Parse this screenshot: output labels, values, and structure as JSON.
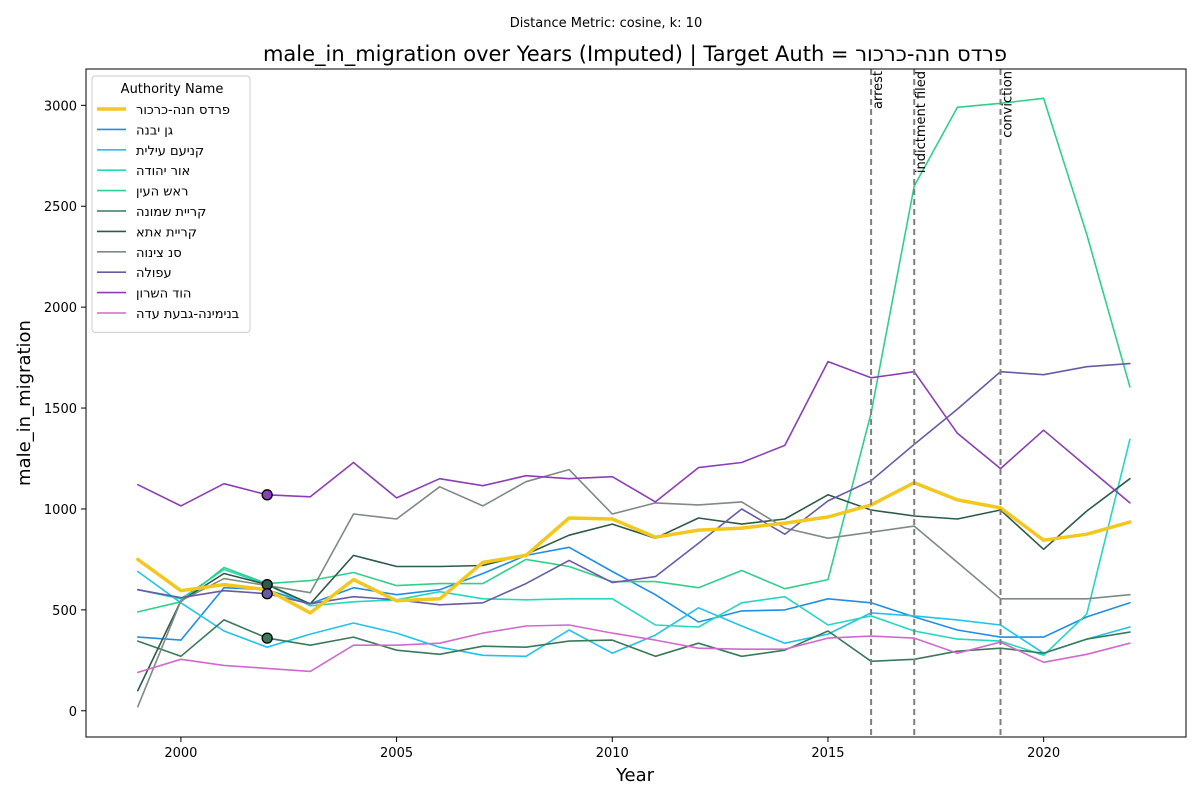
{
  "chart_data": {
    "type": "line",
    "suptitle": "Distance Metric: cosine, k: 10",
    "title": "male_in_migration over Years (Imputed) | Target Auth = פרדס חנה-כרכור",
    "xlabel": "Year",
    "ylabel": "male_in_migration",
    "xlim": [
      1997.8,
      2023.3
    ],
    "ylim": [
      -130,
      3180
    ],
    "xticks": [
      2000,
      2005,
      2010,
      2015,
      2020
    ],
    "yticks": [
      0,
      500,
      1000,
      1500,
      2000,
      2500,
      3000
    ],
    "grid": false,
    "legend": {
      "title": "Authority Name",
      "placement": "top-left"
    },
    "x": [
      1999,
      2000,
      2001,
      2002,
      2003,
      2004,
      2005,
      2006,
      2007,
      2008,
      2009,
      2010,
      2011,
      2012,
      2013,
      2014,
      2015,
      2016,
      2017,
      2018,
      2019,
      2020,
      2021,
      2022
    ],
    "series": [
      {
        "name": "פרדס חנה-כרכור",
        "color": "#f2c81e",
        "width": 3.5,
        "target": true,
        "values": [
          750,
          595,
          625,
          600,
          485,
          650,
          545,
          555,
          735,
          770,
          955,
          950,
          860,
          895,
          905,
          930,
          960,
          1020,
          1130,
          1045,
          1005,
          845,
          875,
          935
        ]
      },
      {
        "name": "גן יבנה",
        "color": "#1f8fe6",
        "width": 1.6,
        "values": [
          365,
          350,
          610,
          600,
          530,
          610,
          575,
          600,
          680,
          770,
          810,
          690,
          575,
          440,
          495,
          500,
          555,
          535,
          465,
          400,
          365,
          365,
          465,
          535
        ]
      },
      {
        "name": "קניעם עילית",
        "color": "#20c4ea",
        "width": 1.6,
        "values": [
          690,
          535,
          395,
          315,
          380,
          435,
          385,
          315,
          275,
          270,
          400,
          285,
          375,
          510,
          420,
          335,
          380,
          485,
          470,
          450,
          425,
          285,
          355,
          415
        ]
      },
      {
        "name": "אור יהודה",
        "color": "#24d8be",
        "width": 1.6,
        "values": [
          600,
          555,
          700,
          625,
          520,
          540,
          550,
          590,
          555,
          550,
          555,
          555,
          425,
          415,
          535,
          565,
          425,
          470,
          395,
          355,
          345,
          275,
          480,
          1345
        ]
      },
      {
        "name": "ראש העין",
        "color": "#2fd08a",
        "width": 1.6,
        "values": [
          490,
          540,
          710,
          630,
          645,
          685,
          620,
          630,
          630,
          750,
          715,
          640,
          640,
          610,
          695,
          605,
          650,
          1475,
          2600,
          2990,
          3010,
          3035,
          2360,
          1605
        ]
      },
      {
        "name": "קריית שמונה",
        "color": "#3a7a5a",
        "width": 1.6,
        "values": [
          345,
          270,
          450,
          360,
          325,
          365,
          300,
          280,
          320,
          315,
          345,
          350,
          270,
          335,
          270,
          300,
          395,
          245,
          255,
          295,
          310,
          285,
          355,
          390
        ]
      },
      {
        "name": "קריית אתא",
        "color": "#2e5a48",
        "width": 1.6,
        "values": [
          100,
          545,
          680,
          625,
          530,
          770,
          715,
          715,
          720,
          775,
          870,
          925,
          855,
          955,
          925,
          950,
          1070,
          995,
          965,
          950,
          995,
          800,
          990,
          1150
        ]
      },
      {
        "name": "סנ צינוה",
        "color": "#808a84",
        "width": 1.6,
        "values": [
          20,
          545,
          655,
          620,
          585,
          975,
          950,
          1110,
          1015,
          1135,
          1195,
          975,
          1030,
          1020,
          1035,
          905,
          855,
          885,
          915,
          735,
          555,
          555,
          555,
          575
        ]
      },
      {
        "name": "עפולה",
        "color": "#6a5aa6",
        "width": 1.6,
        "values": [
          600,
          560,
          595,
          580,
          530,
          565,
          550,
          525,
          535,
          630,
          745,
          635,
          665,
          830,
          1000,
          875,
          1040,
          1140,
          1320,
          1495,
          1680,
          1665,
          1705,
          1720
        ]
      },
      {
        "name": "הוד השרון",
        "color": "#8a3fb6",
        "width": 1.6,
        "values": [
          1120,
          1015,
          1125,
          1070,
          1060,
          1230,
          1055,
          1150,
          1115,
          1165,
          1150,
          1160,
          1035,
          1205,
          1230,
          1315,
          1730,
          1650,
          1680,
          1375,
          1200,
          1390,
          1210,
          1030
        ]
      },
      {
        "name": "בנימינה-גבעת עדה",
        "color": "#d06acc",
        "width": 1.6,
        "values": [
          190,
          255,
          225,
          210,
          195,
          325,
          325,
          335,
          385,
          420,
          425,
          385,
          350,
          310,
          305,
          305,
          360,
          370,
          360,
          285,
          340,
          240,
          280,
          335
        ]
      }
    ],
    "markers": [
      {
        "series": "הוד השרון",
        "x": 2002,
        "y": 1070
      },
      {
        "series": "קריית אתא",
        "x": 2002,
        "y": 625
      },
      {
        "series": "עפולה",
        "x": 2002,
        "y": 580
      },
      {
        "series": "קריית שמונה",
        "x": 2002,
        "y": 360
      }
    ],
    "events": [
      {
        "label": "arrest",
        "x": 2016
      },
      {
        "label": "indictment filed",
        "x": 2017
      },
      {
        "label": "conviction",
        "x": 2019
      }
    ]
  }
}
